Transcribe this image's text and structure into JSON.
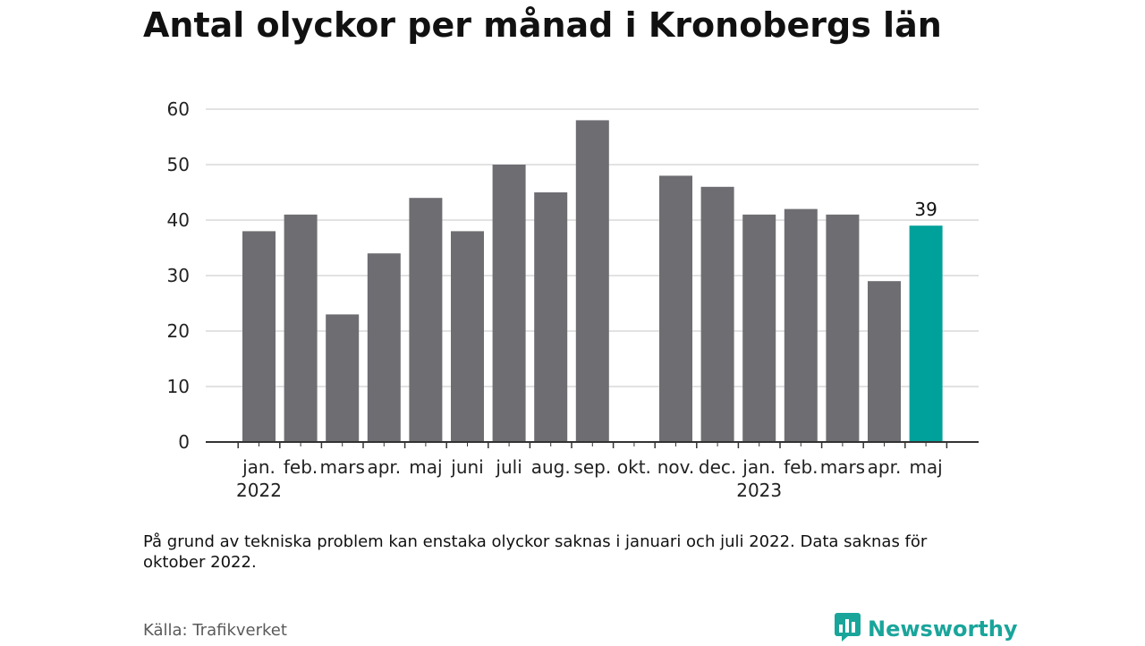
{
  "title": "Antal olyckor per månad i Kronobergs län",
  "note": "På grund av tekniska problem kan enstaka olyckor saknas i januari och juli 2022. Data saknas för oktober 2022.",
  "source": "Källa: Trafikverket",
  "brand": {
    "name": "Newsworthy",
    "icon": "newsworthy-logo-icon",
    "color": "#1aa59b"
  },
  "colors": {
    "bar": "#6e6d72",
    "highlight": "#00a19a",
    "grid": "#d9d9d9",
    "axis": "#333333"
  },
  "chart_data": {
    "type": "bar",
    "categories": [
      "jan.",
      "feb.",
      "mars",
      "apr.",
      "maj",
      "juni",
      "juli",
      "aug.",
      "sep.",
      "okt.",
      "nov.",
      "dec.",
      "jan.",
      "feb.",
      "mars",
      "apr.",
      "maj"
    ],
    "year_labels": [
      {
        "index": 0,
        "label": "2022"
      },
      {
        "index": 12,
        "label": "2023"
      }
    ],
    "values": [
      38,
      41,
      23,
      34,
      44,
      38,
      50,
      45,
      58,
      null,
      48,
      46,
      41,
      42,
      41,
      29,
      39
    ],
    "highlight_index": 16,
    "highlight_label": "39",
    "ylim": [
      0,
      60
    ],
    "yticks": [
      0,
      10,
      20,
      30,
      40,
      50,
      60
    ],
    "grid": true,
    "xlabel": "",
    "ylabel": ""
  }
}
